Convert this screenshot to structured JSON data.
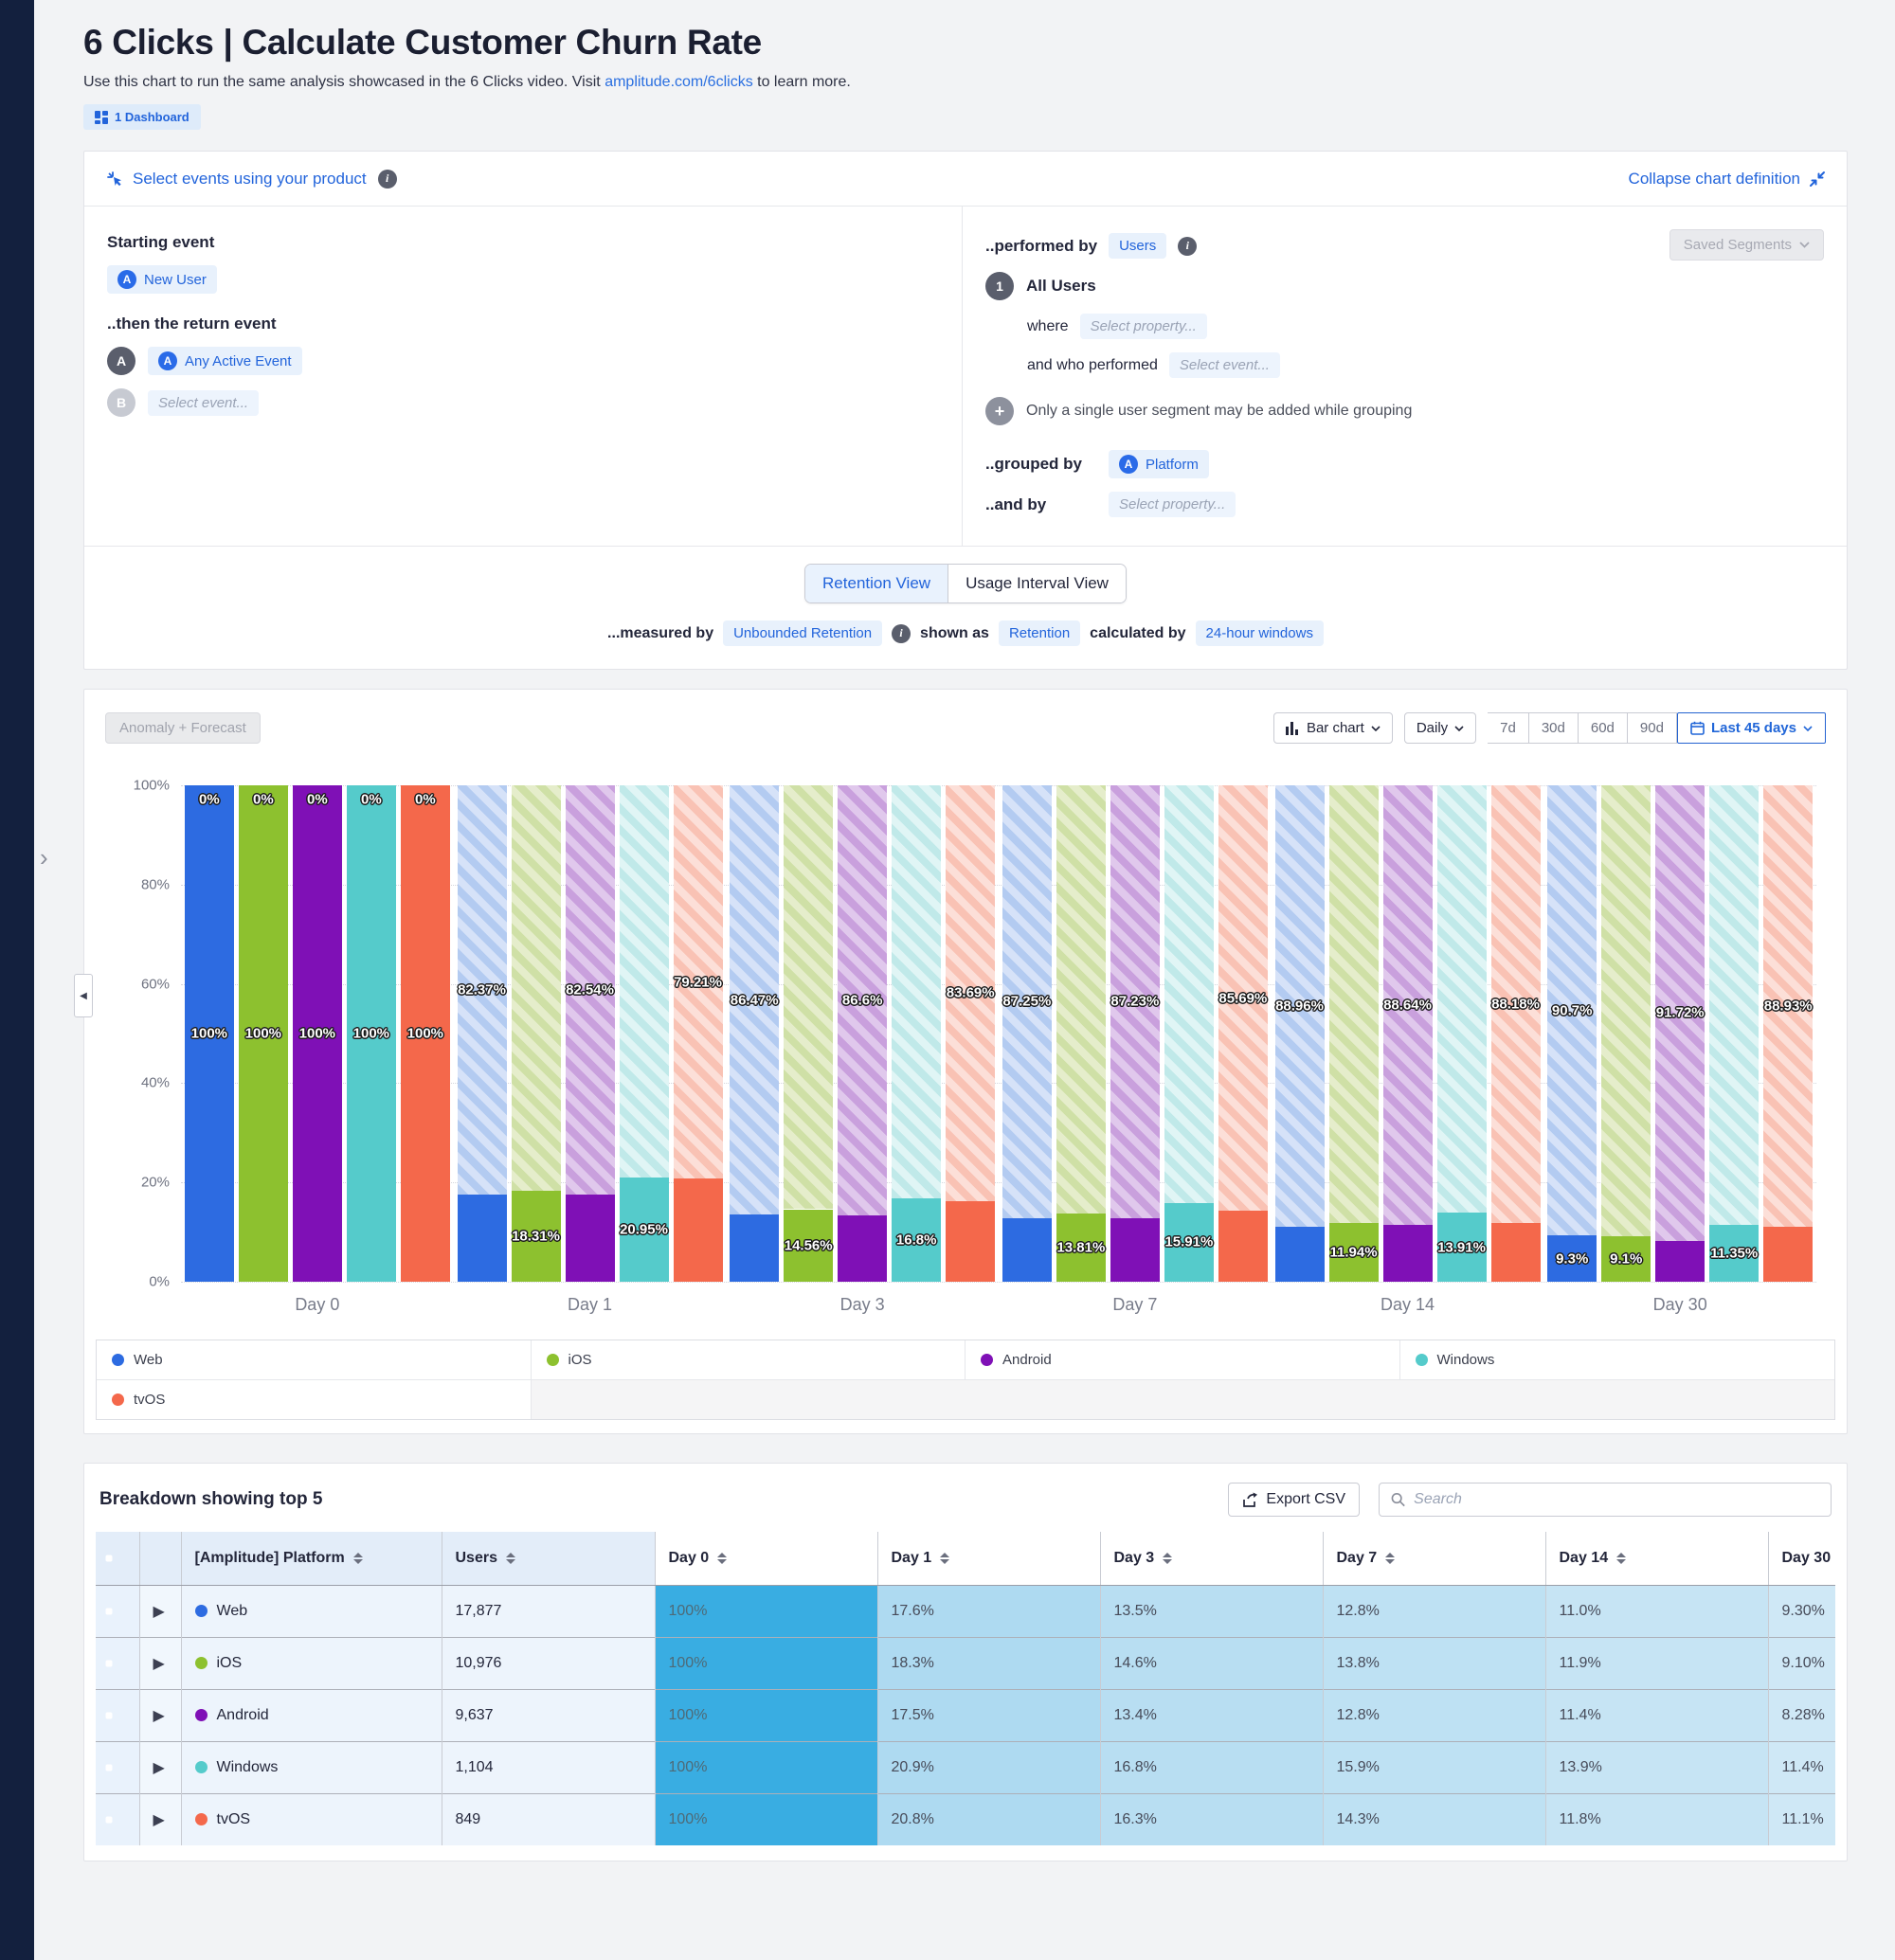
{
  "page": {
    "title": "6 Clicks | Calculate Customer Churn Rate",
    "subtitle_prefix": "Use this chart to run the same analysis showcased in the 6 Clicks video. Visit ",
    "subtitle_link": "amplitude.com/6clicks",
    "subtitle_suffix": " to learn more.",
    "dashboard_badge": "1 Dashboard"
  },
  "definition": {
    "select_events_label": "Select events using your product",
    "collapse_label": "Collapse chart definition",
    "starting_event_label": "Starting event",
    "starting_event": "New User",
    "return_event_label": "..then the return event",
    "return_event_a_badge": "A",
    "return_event_a": "Any Active Event",
    "return_event_b_badge": "B",
    "return_event_b_placeholder": "Select event...",
    "performed_by_label": "..performed by",
    "performed_by_value": "Users",
    "saved_segments_label": "Saved Segments",
    "segment_number": "1",
    "segment_name": "All Users",
    "where_label": "where",
    "where_placeholder": "Select property...",
    "who_performed_label": "and who performed",
    "who_performed_placeholder": "Select event...",
    "segment_note": "Only a single user segment may be added while grouping",
    "grouped_by_label": "..grouped by",
    "grouped_by_value": "Platform",
    "and_by_label": "..and by",
    "and_by_placeholder": "Select property...",
    "tab_retention": "Retention View",
    "tab_usage": "Usage Interval View",
    "measured_by_label": "...measured by",
    "measured_by_value": "Unbounded Retention",
    "shown_as_label": "shown as",
    "shown_as_value": "Retention",
    "calculated_by_label": "calculated by",
    "calculated_by_value": "24-hour windows"
  },
  "toolbar": {
    "anomaly_label": "Anomaly + Forecast",
    "chart_type": "Bar chart",
    "interval": "Daily",
    "ranges": [
      "7d",
      "30d",
      "60d",
      "90d"
    ],
    "date_range": "Last 45 days"
  },
  "chart_data": {
    "type": "bar",
    "title": "Retention by [Amplitude] Platform",
    "ylim": [
      0,
      100
    ],
    "yticks": [
      "100%",
      "80%",
      "60%",
      "40%",
      "20%",
      "0%"
    ],
    "categories": [
      "Day 0",
      "Day 1",
      "Day 3",
      "Day 7",
      "Day 14",
      "Day 30"
    ],
    "legend_position": "bottom",
    "series": [
      {
        "name": "Web",
        "color": "#2D6BE1",
        "hatch": [
          "#B3CBF1",
          "#D6E2F8"
        ]
      },
      {
        "name": "iOS",
        "color": "#8DC12F",
        "hatch": [
          "#CFE0A6",
          "#E5EDCB"
        ]
      },
      {
        "name": "Android",
        "color": "#7F10B6",
        "hatch": [
          "#C9A0DD",
          "#E0C8EC"
        ]
      },
      {
        "name": "Windows",
        "color": "#55CBCB",
        "hatch": [
          "#C0E9E9",
          "#E0F5F5"
        ]
      },
      {
        "name": "tvOS",
        "color": "#F4684B",
        "hatch": [
          "#F9C2B4",
          "#FCDFD8"
        ]
      }
    ],
    "groups": [
      {
        "category": "Day 0",
        "bars": [
          {
            "series": "Web",
            "retention": 100,
            "churn_label": "0%",
            "retention_label": "100%"
          },
          {
            "series": "iOS",
            "retention": 100,
            "churn_label": "0%",
            "retention_label": "100%"
          },
          {
            "series": "Android",
            "retention": 100,
            "churn_label": "0%",
            "retention_label": "100%"
          },
          {
            "series": "Windows",
            "retention": 100,
            "churn_label": "0%",
            "retention_label": "100%"
          },
          {
            "series": "tvOS",
            "retention": 100,
            "churn_label": "0%",
            "retention_label": "100%"
          }
        ]
      },
      {
        "category": "Day 1",
        "bars": [
          {
            "series": "Web",
            "retention": 17.6,
            "churn_label": "82.37%"
          },
          {
            "series": "iOS",
            "retention": 18.3,
            "retention_label": "18.31%"
          },
          {
            "series": "Android",
            "retention": 17.5,
            "churn_label": "82.54%"
          },
          {
            "series": "Windows",
            "retention": 20.9,
            "retention_label": "20.95%"
          },
          {
            "series": "tvOS",
            "retention": 20.8,
            "churn_label": "79.21%"
          }
        ]
      },
      {
        "category": "Day 3",
        "bars": [
          {
            "series": "Web",
            "retention": 13.5,
            "churn_label": "86.47%"
          },
          {
            "series": "iOS",
            "retention": 14.6,
            "retention_label": "14.56%"
          },
          {
            "series": "Android",
            "retention": 13.4,
            "churn_label": "86.6%"
          },
          {
            "series": "Windows",
            "retention": 16.8,
            "retention_label": "16.8%"
          },
          {
            "series": "tvOS",
            "retention": 16.3,
            "churn_label": "83.69%"
          }
        ]
      },
      {
        "category": "Day 7",
        "bars": [
          {
            "series": "Web",
            "retention": 12.8,
            "churn_label": "87.25%"
          },
          {
            "series": "iOS",
            "retention": 13.8,
            "retention_label": "13.81%"
          },
          {
            "series": "Android",
            "retention": 12.8,
            "churn_label": "87.23%"
          },
          {
            "series": "Windows",
            "retention": 15.9,
            "retention_label": "15.91%"
          },
          {
            "series": "tvOS",
            "retention": 14.3,
            "churn_label": "85.69%"
          }
        ]
      },
      {
        "category": "Day 14",
        "bars": [
          {
            "series": "Web",
            "retention": 11.0,
            "churn_label": "88.96%"
          },
          {
            "series": "iOS",
            "retention": 11.9,
            "retention_label": "11.94%"
          },
          {
            "series": "Android",
            "retention": 11.4,
            "churn_label": "88.64%"
          },
          {
            "series": "Windows",
            "retention": 13.9,
            "retention_label": "13.91%"
          },
          {
            "series": "tvOS",
            "retention": 11.8,
            "churn_label": "88.18%"
          }
        ]
      },
      {
        "category": "Day 30",
        "bars": [
          {
            "series": "Web",
            "retention": 9.3,
            "churn_label": "90.7%",
            "retention_label": "9.3%"
          },
          {
            "series": "iOS",
            "retention": 9.1,
            "retention_label": "9.1%"
          },
          {
            "series": "Android",
            "retention": 8.28,
            "churn_label": "91.72%"
          },
          {
            "series": "Windows",
            "retention": 11.4,
            "retention_label": "11.35%"
          },
          {
            "series": "tvOS",
            "retention": 11.1,
            "churn_label": "88.93%"
          }
        ]
      }
    ],
    "legend_rows": [
      [
        "Web",
        "iOS",
        "Android",
        "Windows"
      ],
      [
        "tvOS"
      ]
    ]
  },
  "breakdown": {
    "title": "Breakdown showing top 5",
    "export_label": "Export CSV",
    "search_placeholder": "Search",
    "platform_column": "[Amplitude] Platform",
    "users_column": "Users",
    "day_columns": [
      "Day 0",
      "Day 1",
      "Day 3",
      "Day 7",
      "Day 14",
      "Day 30"
    ],
    "heat_colors": [
      "#39ADE2",
      "#AEDAF1",
      "#B8DEF2",
      "#BEE1F3",
      "#C6E4F4",
      "#CFE8F6"
    ],
    "rows": [
      {
        "platform": "Web",
        "users": "17,877",
        "values": [
          "100%",
          "17.6%",
          "13.5%",
          "12.8%",
          "11.0%",
          "9.30%"
        ]
      },
      {
        "platform": "iOS",
        "users": "10,976",
        "values": [
          "100%",
          "18.3%",
          "14.6%",
          "13.8%",
          "11.9%",
          "9.10%"
        ]
      },
      {
        "platform": "Android",
        "users": "9,637",
        "values": [
          "100%",
          "17.5%",
          "13.4%",
          "12.8%",
          "11.4%",
          "8.28%"
        ]
      },
      {
        "platform": "Windows",
        "users": "1,104",
        "values": [
          "100%",
          "20.9%",
          "16.8%",
          "15.9%",
          "13.9%",
          "11.4%"
        ]
      },
      {
        "platform": "tvOS",
        "users": "849",
        "values": [
          "100%",
          "20.8%",
          "16.3%",
          "14.3%",
          "11.8%",
          "11.1%"
        ]
      }
    ]
  }
}
